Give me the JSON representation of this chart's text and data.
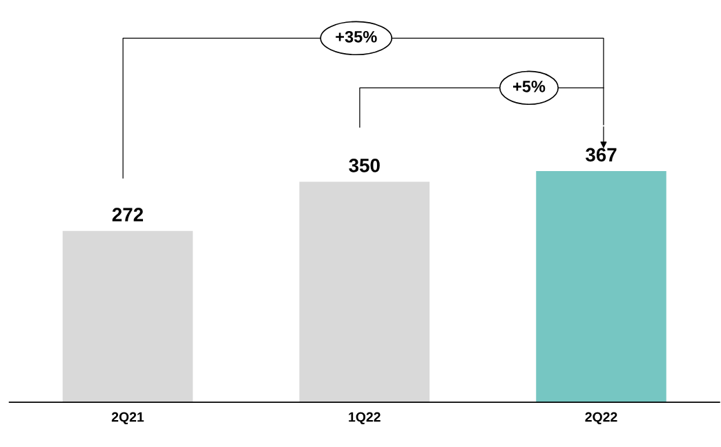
{
  "chart_data": {
    "type": "bar",
    "categories": [
      "2Q21",
      "1Q22",
      "2Q22"
    ],
    "values": [
      272,
      350,
      367
    ],
    "colors": [
      "#d9d9d9",
      "#d9d9d9",
      "#76c6c2"
    ],
    "data_labels": true,
    "grid": false,
    "legend": false,
    "annotations": [
      "+35%",
      "+5%"
    ]
  }
}
